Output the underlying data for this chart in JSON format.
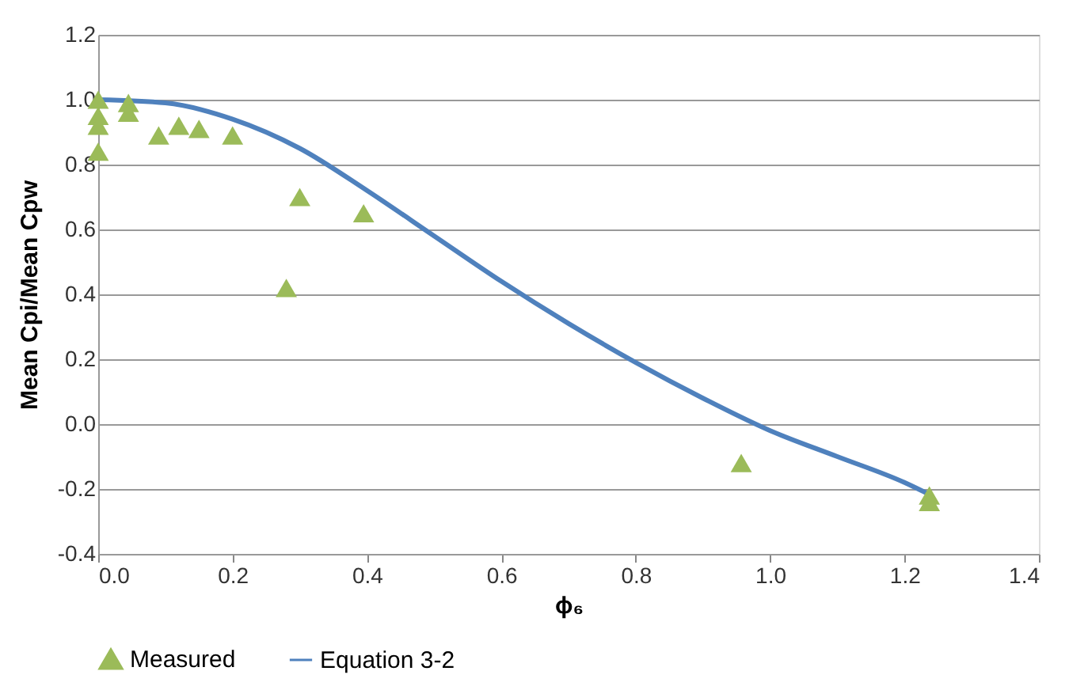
{
  "chart_data": {
    "type": "scatter",
    "xlabel": "ϕ₆",
    "ylabel": "Mean Cpi/Mean Cpw",
    "xlim": [
      0,
      1.4
    ],
    "xticks": [
      {
        "value": 0,
        "label": "0.0"
      },
      0.2,
      0.4,
      0.6,
      0.8,
      {
        "value": 1,
        "label": "1.0"
      },
      1.2,
      1.4
    ],
    "ylim": [
      -0.4,
      1.2
    ],
    "yticks": [
      -0.4,
      -0.2,
      {
        "value": 0,
        "label": "0.0"
      },
      0.2,
      0.4,
      0.6,
      0.8,
      {
        "value": 1,
        "label": "1.0"
      },
      1.2
    ],
    "grid": "y",
    "legend": "bottom",
    "series": [
      {
        "name": "Measured",
        "type": "scatter",
        "marker": "triangle",
        "color": "#9bbb59",
        "x": [
          0,
          0,
          0,
          0,
          0.045,
          0.045,
          0.09,
          0.12,
          0.15,
          0.2,
          0.28,
          0.3,
          0.395,
          0.957,
          1.237,
          1.237
        ],
        "values": [
          1.0,
          0.95,
          0.92,
          0.84,
          0.99,
          0.96,
          0.89,
          0.92,
          0.91,
          0.89,
          0.42,
          0.7,
          0.65,
          -0.12,
          -0.22,
          -0.24
        ]
      },
      {
        "name": "Equation 3-2",
        "type": "line",
        "color": "#4f81bd",
        "x": [
          0,
          0.1,
          0.2,
          0.3,
          0.4,
          0.5,
          0.6,
          0.7,
          0.8,
          0.9,
          1.0,
          1.1,
          1.2,
          1.24
        ],
        "values": [
          1.0,
          0.99,
          0.94,
          0.85,
          0.72,
          0.58,
          0.44,
          0.31,
          0.19,
          0.08,
          -0.02,
          -0.1,
          -0.18,
          -0.22
        ]
      }
    ]
  }
}
